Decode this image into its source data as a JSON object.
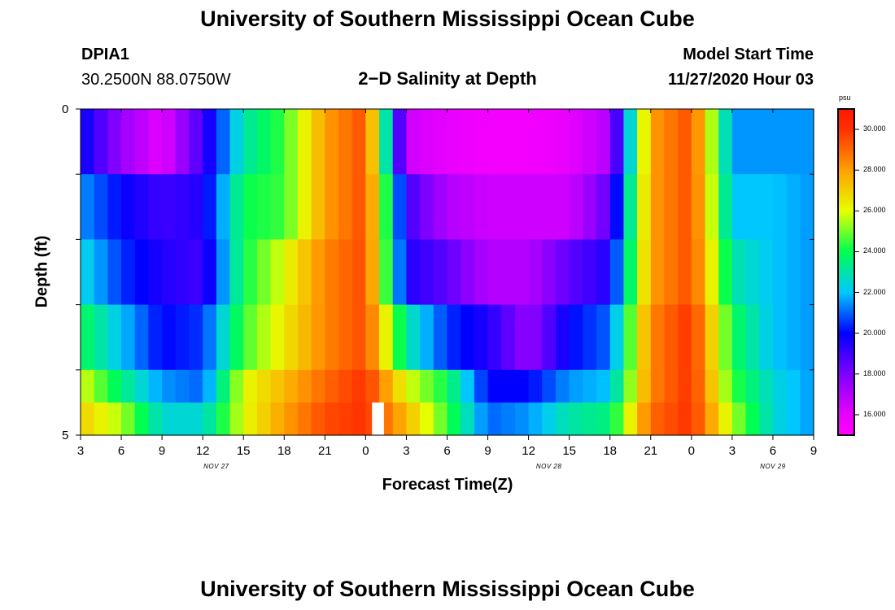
{
  "titles": {
    "top": "University of Southern Mississippi Ocean Cube",
    "bottom": "University of Southern Mississippi Ocean Cube"
  },
  "station": {
    "id": "DPIA1",
    "coords": "30.2500N 88.0750W"
  },
  "model": {
    "label": "Model Start Time",
    "value": "11/27/2020 Hour 03"
  },
  "chart_data": {
    "type": "heatmap",
    "title": "2−D Salinity at Depth",
    "xlabel": "Forecast Time(Z)",
    "ylabel": "Depth (ft)",
    "ylim": [
      0,
      5
    ],
    "y_ticks": [
      {
        "value": 0,
        "label": "0"
      },
      {
        "value": 1,
        "label": ""
      },
      {
        "value": 2,
        "label": ""
      },
      {
        "value": 3,
        "label": ""
      },
      {
        "value": 4,
        "label": ""
      },
      {
        "value": 5,
        "label": "5"
      }
    ],
    "x_ticks": [
      "3",
      "6",
      "9",
      "12",
      "15",
      "18",
      "21",
      "0",
      "3",
      "6",
      "9",
      "12",
      "15",
      "18",
      "21",
      "0",
      "3",
      "6",
      "9"
    ],
    "x_start_hour": 3,
    "x_end_hour": 57,
    "day_labels": [
      {
        "hour": 13,
        "label": "NOV  27"
      },
      {
        "hour": 37.5,
        "label": "NOV  28"
      },
      {
        "hour": 54,
        "label": "NOV  29"
      }
    ],
    "depth_layers": [
      0,
      1,
      2,
      3,
      4,
      4.5,
      5
    ],
    "anchor_hours": [
      3,
      6,
      9,
      12,
      15,
      18,
      21,
      24,
      27,
      30,
      33,
      36,
      39,
      42,
      45,
      48,
      51,
      54,
      57
    ],
    "salinity_rows": [
      [
        20,
        17.5,
        16,
        19,
        23,
        24.5,
        28,
        29.5,
        16.5,
        16,
        15.5,
        15.5,
        16,
        17,
        28,
        29.5,
        21.5,
        21.5,
        21.5
      ],
      [
        21.5,
        20,
        19,
        19.5,
        24,
        24.5,
        28,
        29.5,
        19,
        17,
        16.5,
        16.5,
        16.5,
        18.5,
        28,
        29.5,
        22,
        22,
        21.5
      ],
      [
        22.5,
        20.5,
        19.5,
        19,
        24,
        26,
        28.5,
        29.5,
        19.5,
        18.5,
        17,
        17,
        18.5,
        19.5,
        28,
        29.5,
        23,
        22,
        21.5
      ],
      [
        24,
        22,
        20,
        20.5,
        24.5,
        26.5,
        28.5,
        29.5,
        23,
        20.5,
        19.5,
        17.5,
        20,
        21,
        28.5,
        30,
        24,
        22,
        21.5
      ],
      [
        26,
        23.5,
        21.5,
        21,
        26,
        27.5,
        29,
        30,
        26,
        24,
        20,
        20,
        21.5,
        22,
        28.5,
        30,
        24.5,
        22.5,
        21.5
      ],
      [
        27,
        25.5,
        22.5,
        22.5,
        26,
        28,
        29.5,
        30,
        27.5,
        24.5,
        21,
        21.5,
        23,
        23.5,
        29,
        30,
        25.5,
        22.5,
        21.5
      ]
    ],
    "missing": [
      {
        "hour": 24.5,
        "layer": 5
      }
    ],
    "colorbar": {
      "unit": "psu",
      "range": [
        15,
        31
      ],
      "tick_values": [
        16,
        18,
        20,
        22,
        24,
        26,
        28,
        30
      ],
      "tick_labels": [
        "16.000",
        "18.000",
        "20.000",
        "22.000",
        "24.000",
        "26.000",
        "28.000",
        "30.000"
      ]
    }
  }
}
